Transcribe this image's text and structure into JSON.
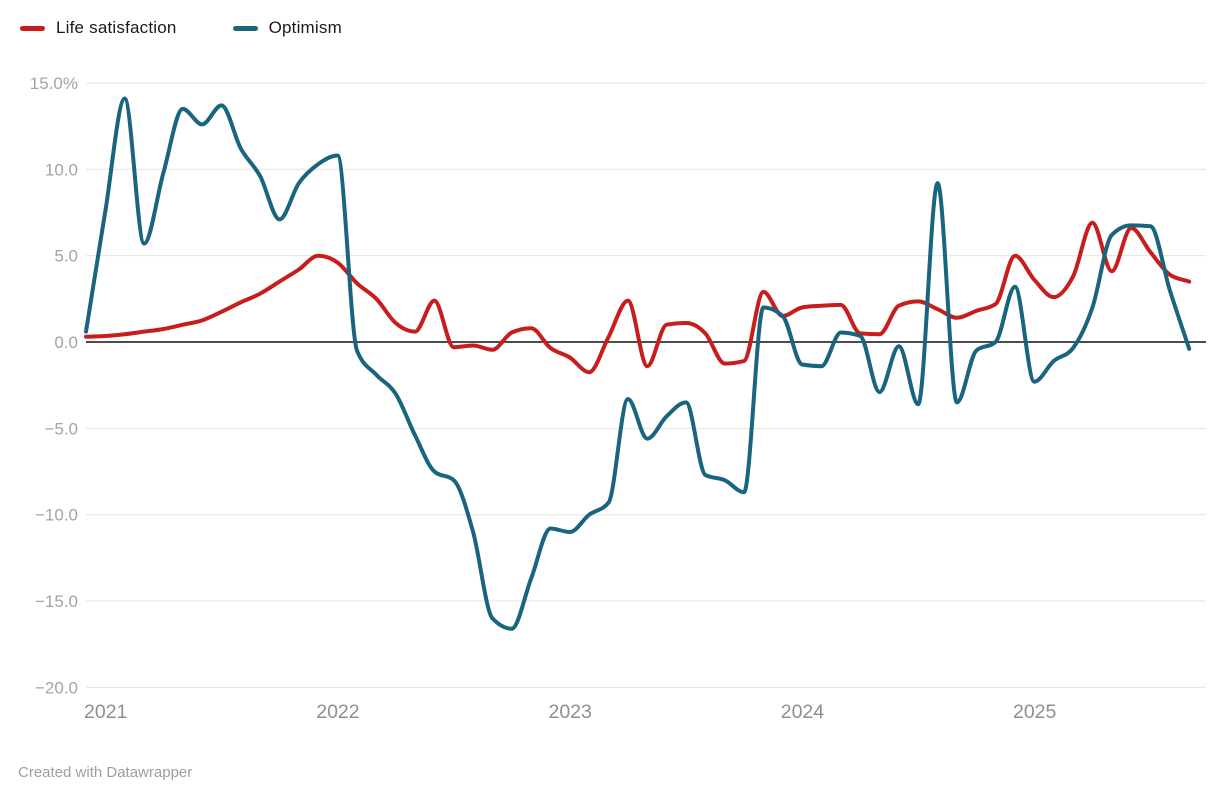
{
  "legend": {
    "items": [
      {
        "label": "Life satisfaction",
        "color": "#c71e1d"
      },
      {
        "label": "Optimism",
        "color": "#19647e"
      }
    ]
  },
  "footer": {
    "text": "Created with Datawrapper"
  },
  "chart_data": {
    "type": "line",
    "title": "",
    "xlabel": "",
    "ylabel": "",
    "ylim": [
      -20,
      15
    ],
    "grid": true,
    "legend_position": "top-left",
    "smoothing": "monotone",
    "zero_baseline": true,
    "y_tick_values": [
      15,
      10,
      5,
      0,
      -5,
      -10,
      -15,
      -20
    ],
    "y_tick_labels": [
      "15.0%",
      "10.0",
      "5.0",
      "0.0",
      "−5.0",
      "−10.0",
      "−15.0",
      "−20.0"
    ],
    "x_tick_labels": [
      "2021",
      "2022",
      "2023",
      "2024",
      "2025"
    ],
    "x": [
      "2021-01",
      "2021-02",
      "2021-03",
      "2021-04",
      "2021-05",
      "2021-06",
      "2021-07",
      "2021-08",
      "2021-09",
      "2021-10",
      "2021-11",
      "2021-12",
      "2022-01",
      "2022-02",
      "2022-03",
      "2022-04",
      "2022-05",
      "2022-06",
      "2022-07",
      "2022-08",
      "2022-09",
      "2022-10",
      "2022-11",
      "2022-12",
      "2023-01",
      "2023-02",
      "2023-03",
      "2023-04",
      "2023-05",
      "2023-06",
      "2023-07",
      "2023-08",
      "2023-09",
      "2023-10",
      "2023-11",
      "2023-12",
      "2024-01",
      "2024-02",
      "2024-03",
      "2024-04",
      "2024-05",
      "2024-06",
      "2024-07",
      "2024-08",
      "2024-09",
      "2024-10",
      "2024-11",
      "2024-12",
      "2025-01",
      "2025-02",
      "2025-03",
      "2025-04",
      "2025-05",
      "2025-06",
      "2025-07",
      "2025-08",
      "2025-09",
      "2025-10"
    ],
    "series": [
      {
        "name": "Life satisfaction",
        "color": "#c71e1d",
        "values": [
          0.3,
          0.35,
          0.45,
          0.6,
          0.75,
          1.0,
          1.25,
          1.75,
          2.3,
          2.8,
          3.5,
          4.2,
          5.0,
          4.6,
          3.4,
          2.5,
          1.1,
          0.6,
          2.4,
          -0.3,
          -0.2,
          -0.45,
          0.55,
          0.8,
          -0.35,
          -0.9,
          -1.75,
          0.3,
          2.4,
          -1.4,
          1.0,
          1.1,
          0.5,
          -1.25,
          -1.1,
          2.9,
          1.5,
          2.0,
          2.1,
          2.15,
          0.5,
          0.45,
          2.1,
          2.35,
          1.9,
          1.4,
          1.8,
          2.2,
          5.0,
          3.6,
          2.6,
          3.8,
          6.9,
          4.1,
          6.6,
          5.2,
          3.9,
          3.5
        ]
      },
      {
        "name": "Optimism",
        "color": "#19647e",
        "values": [
          0.6,
          7.6,
          14.1,
          5.7,
          9.8,
          13.5,
          12.6,
          13.7,
          11.2,
          9.6,
          7.1,
          9.2,
          10.3,
          10.8,
          -0.5,
          -1.9,
          -3.0,
          -5.4,
          -7.5,
          -8.0,
          -11.0,
          -16.0,
          -16.6,
          -13.7,
          -10.8,
          -11.0,
          -10.0,
          -9.3,
          -3.3,
          -5.6,
          -4.3,
          -3.5,
          -7.7,
          -8.0,
          -8.7,
          2.0,
          1.5,
          -1.3,
          -1.4,
          0.55,
          0.35,
          -2.9,
          -0.25,
          -3.6,
          9.2,
          -3.5,
          -0.5,
          0.0,
          3.2,
          -2.3,
          -1.1,
          -0.35,
          2.0,
          6.2,
          6.75,
          6.7,
          3.0,
          -0.4
        ]
      }
    ]
  }
}
